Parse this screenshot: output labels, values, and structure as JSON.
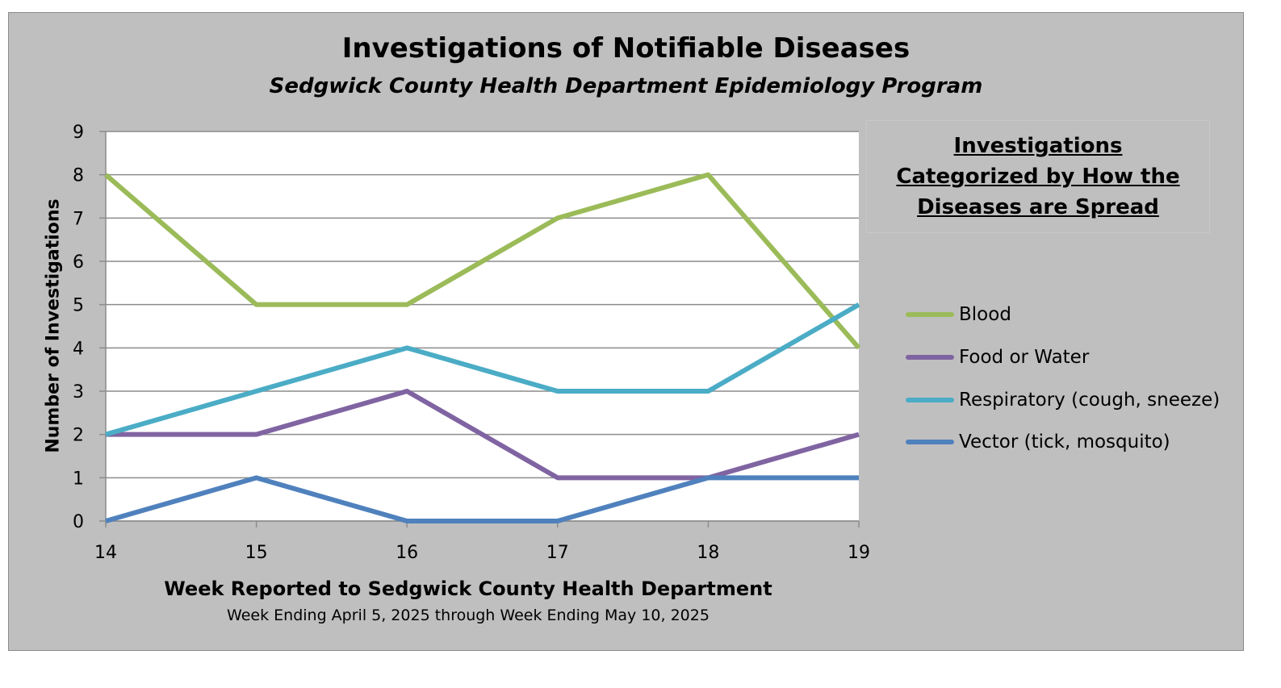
{
  "chart_data": {
    "type": "line",
    "title": "Investigations of Notifiable Diseases",
    "subtitle": "Sedgwick County Health Department Epidemiology Program",
    "xlabel": "Week Reported to Sedgwick County Health Department",
    "xlabel_sub": "Week Ending  April 5, 2025 through Week Ending  May 10, 2025",
    "ylabel": "Number of Investigations",
    "x": [
      14,
      15,
      16,
      17,
      18,
      19
    ],
    "ylim": [
      0,
      9
    ],
    "yticks": [
      0,
      1,
      2,
      3,
      4,
      5,
      6,
      7,
      8,
      9
    ],
    "grid": true,
    "legend_title": "Investigations Categorized by How the Diseases are Spread",
    "legend_position": "right",
    "series": [
      {
        "name": "Blood",
        "color": "#9bbb59",
        "values": [
          8,
          5,
          5,
          7,
          8,
          4
        ]
      },
      {
        "name": "Food or Water",
        "color": "#8064a2",
        "values": [
          2,
          2,
          3,
          1,
          1,
          2
        ]
      },
      {
        "name": "Respiratory (cough, sneeze)",
        "color": "#4bacc6",
        "values": [
          2,
          3,
          4,
          3,
          3,
          5
        ]
      },
      {
        "name": "Vector (tick, mosquito)",
        "color": "#4f81bd",
        "values": [
          0,
          1,
          0,
          0,
          1,
          1
        ]
      }
    ]
  }
}
